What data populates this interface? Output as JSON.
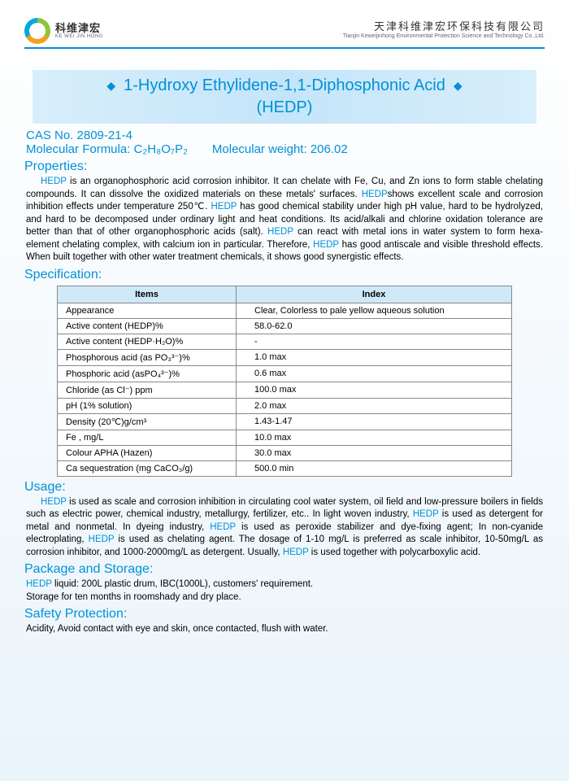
{
  "header": {
    "logo_cn": "科维津宏",
    "logo_en": "KE WEI JIN HONG",
    "company_cn": "天津科维津宏环保科技有限公司",
    "company_en": "Tianjin Keweijinhong Environmental Protection Science and Technology Co.,Ltd."
  },
  "title": {
    "line1": "1-Hydroxy Ethylidene-1,1-Diphosphonic Acid",
    "line2": "(HEDP)"
  },
  "meta": {
    "cas": "CAS No. 2809-21-4",
    "formula_label": "Molecular Formula: C",
    "formula_sub": "2H8O7P2",
    "formula_full": "Molecular Formula: C₂H₈O₇P₂",
    "weight": "Molecular weight: 206.02"
  },
  "sections": {
    "properties_h": "Properties:",
    "properties_p1a": "HEDP",
    "properties_p1b": " is an organophosphoric acid corrosion inhibitor. It can chelate with Fe, Cu, and Zn ions to form stable chelating compounds. It can dissolve the oxidized materials on these metals' surfaces. ",
    "properties_p1c": "HEDP",
    "properties_p1d": "shows excellent scale and corrosion inhibition effects under temperature 250℃. ",
    "properties_p1e": "HEDP",
    "properties_p1f": " has good chemical stability under high pH value, hard to be hydrolyzed, and hard to be decomposed under ordinary light and heat conditions. Its acid/alkali and chlorine oxidation tolerance are better than that of other organophosphoric acids (salt). ",
    "properties_p1g": "HEDP",
    "properties_p1h": " can react with metal ions in water system to form hexa-element chelating complex, with calcium ion in particular. Therefore, ",
    "properties_p1i": "HEDP",
    "properties_p1j": " has good antiscale and visible threshold effects. When built together with other water treatment chemicals, it shows good synergistic effects.",
    "spec_h": "Specification:",
    "usage_h": "Usage:",
    "usage_a": "HEDP",
    "usage_b": " is used as scale and corrosion inhibition in circulating cool water system, oil field and low-pressure boilers in fields such as electric power, chemical industry, metallurgy, fertilizer, etc.. In light woven industry, ",
    "usage_c": "HEDP",
    "usage_d": " is used as detergent for metal and nonmetal. In dyeing industry, ",
    "usage_e": "HEDP",
    "usage_f": " is used as peroxide stabilizer and dye-fixing agent; In non-cyanide electroplating, ",
    "usage_g": "HEDP",
    "usage_h2": " is used as chelating agent. The dosage of 1-10 mg/L is preferred as scale inhibitor, 10-50mg/L as corrosion inhibitor, and 1000-2000mg/L as detergent. Usually, ",
    "usage_i": "HEDP",
    "usage_j": " is used together with polycarboxylic acid.",
    "package_h": "Package and Storage:",
    "package_a": "HEDP",
    "package_b": " liquid: 200L plastic drum, IBC(1000L), customers' requirement.",
    "package_c": "Storage for ten months in roomshady and dry place.",
    "safety_h": "Safety Protection:",
    "safety_p": "Acidity, Avoid contact with eye and skin, once contacted, flush with water."
  },
  "spec_table": {
    "col1": "Items",
    "col2": "Index",
    "rows": [
      {
        "item": "Appearance",
        "index": "Clear, Colorless to pale yellow aqueous solution"
      },
      {
        "item": "Active content (HEDP)%",
        "index": "58.0-62.0"
      },
      {
        "item": "Active content (HEDP·H₂O)%",
        "index": "-"
      },
      {
        "item": "Phosphorous acid (as PO₃³⁻)%",
        "index": "1.0 max"
      },
      {
        "item": "Phosphoric acid  (asPO₄³⁻)%",
        "index": "0.6 max"
      },
      {
        "item": "Chloride (as Cl⁻) ppm",
        "index": "100.0 max"
      },
      {
        "item": "pH (1% solution)",
        "index": "2.0 max"
      },
      {
        "item": "Density  (20℃)g/cm³",
        "index": "1.43-1.47"
      },
      {
        "item": "Fe , mg/L",
        "index": "10.0 max"
      },
      {
        "item": "Colour APHA (Hazen)",
        "index": "30.0 max"
      },
      {
        "item": "Ca sequestration (mg CaCO₃/g)",
        "index": "500.0 min"
      }
    ]
  },
  "colors": {
    "brand_blue": "#0090d8",
    "banner_bg": "#cfe9f9",
    "page_bg": "#eaf4fb",
    "border": "#888888"
  }
}
